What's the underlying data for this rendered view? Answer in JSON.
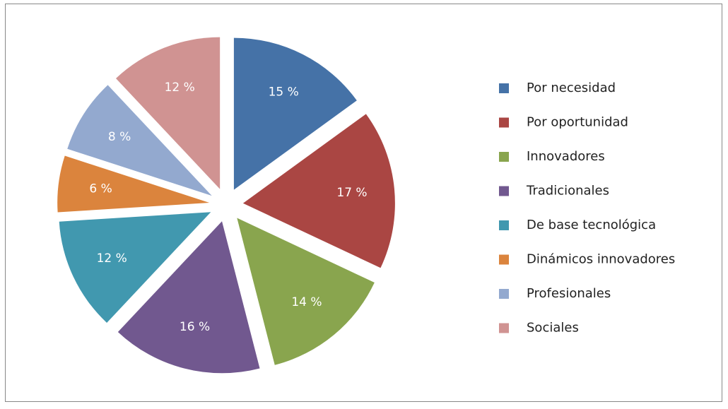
{
  "chart_data": {
    "type": "pie",
    "categories": [
      "Por necesidad",
      "Por oportunidad",
      "Innovadores",
      "Tradicionales",
      "De base tecnológica",
      "Dinámicos innovadores",
      "Profesionales",
      "Sociales"
    ],
    "values": [
      15,
      17,
      14,
      16,
      12,
      6,
      8,
      12
    ],
    "value_labels": [
      "15 %",
      "17 %",
      "14 %",
      "16 %",
      "12 %",
      "6 %",
      "8 %",
      "12 %"
    ],
    "colors": [
      "#4572a7",
      "#aa4643",
      "#89a54e",
      "#71588f",
      "#4198af",
      "#db843d",
      "#93a9cf",
      "#d09392"
    ],
    "legend": "right"
  }
}
